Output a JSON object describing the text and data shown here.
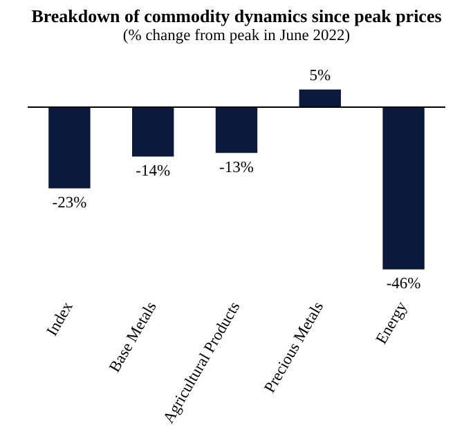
{
  "chart_data": {
    "type": "bar",
    "title": "Breakdown of commodity dynamics since peak prices",
    "subtitle": "(% change from peak in June 2022)",
    "categories": [
      "Index",
      "Base Metals",
      "Agricultural Products",
      "Precious Metals",
      "Energy"
    ],
    "values": [
      -23,
      -14,
      -13,
      5,
      -46
    ],
    "color": "#0b1a3c",
    "data_labels": true,
    "value_labels": [
      "-23%",
      "-14%",
      "-13%",
      "5%",
      "-46%"
    ],
    "legend": false
  }
}
